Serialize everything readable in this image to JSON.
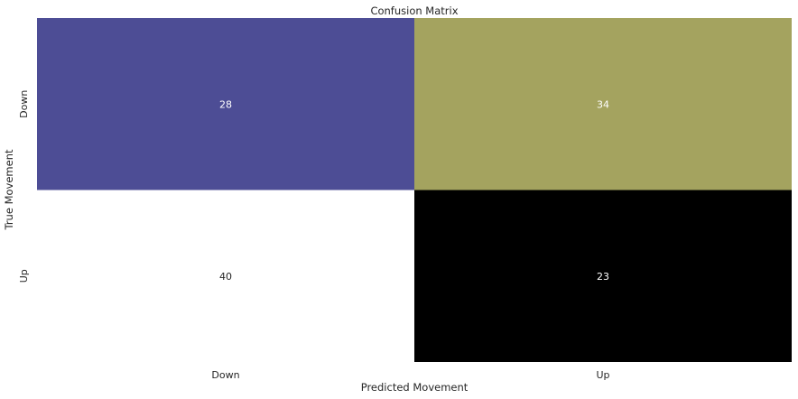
{
  "chart_data": {
    "type": "heatmap",
    "title": "Confusion Matrix",
    "xlabel": "Predicted Movement",
    "ylabel": "True Movement",
    "x_categories": [
      "Down",
      "Up"
    ],
    "y_categories": [
      "Down",
      "Up"
    ],
    "values": [
      [
        28,
        34
      ],
      [
        40,
        23
      ]
    ],
    "colormap": "gist_stern",
    "colorbar": false,
    "annotate_cells": true,
    "cell_colors": [
      [
        "#4d4d95",
        "#a4a35f"
      ],
      [
        "#ffffff",
        "#000000"
      ]
    ],
    "annotation_colors": [
      [
        "#ffffff",
        "#ffffff"
      ],
      [
        "#262626",
        "#ffffff"
      ]
    ]
  }
}
